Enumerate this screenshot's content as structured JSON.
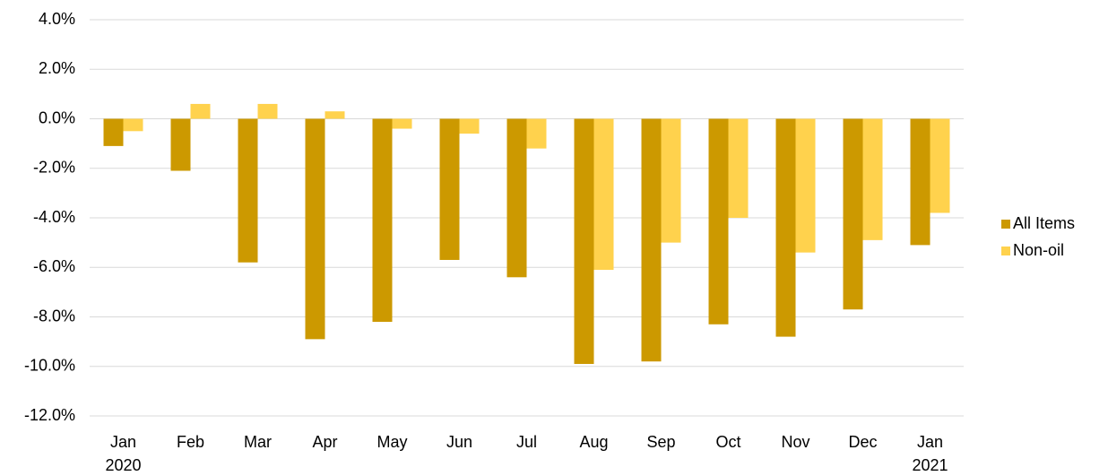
{
  "chart_data": {
    "type": "bar",
    "categories": [
      "Jan\n2020",
      "Feb",
      "Mar",
      "Apr",
      "May",
      "Jun",
      "Jul",
      "Aug",
      "Sep",
      "Oct",
      "Nov",
      "Dec",
      "Jan\n2021"
    ],
    "series": [
      {
        "name": "All Items",
        "color": "#cc9900",
        "values": [
          -1.1,
          -2.1,
          -5.8,
          -8.9,
          -8.2,
          -5.7,
          -6.4,
          -9.9,
          -9.8,
          -8.3,
          -8.8,
          -7.7,
          -5.1
        ]
      },
      {
        "name": "Non-oil",
        "color": "#ffd24d",
        "values": [
          -0.5,
          0.6,
          0.6,
          0.3,
          -0.4,
          -0.6,
          -1.2,
          -6.1,
          -5.0,
          -4.0,
          -5.4,
          -4.9,
          -3.8
        ]
      }
    ],
    "ylim": [
      -12,
      4
    ],
    "yticks": [
      {
        "value": -12,
        "label": "-12.0%"
      },
      {
        "value": -10,
        "label": "-10.0%"
      },
      {
        "value": -8,
        "label": "-8.0%"
      },
      {
        "value": -6,
        "label": "-6.0%"
      },
      {
        "value": -4,
        "label": "-4.0%"
      },
      {
        "value": -2,
        "label": "-2.0%"
      },
      {
        "value": 0,
        "label": "0.0%"
      },
      {
        "value": 2,
        "label": "2.0%"
      },
      {
        "value": 4,
        "label": "4.0%"
      }
    ],
    "grid": true,
    "legend": "right"
  }
}
